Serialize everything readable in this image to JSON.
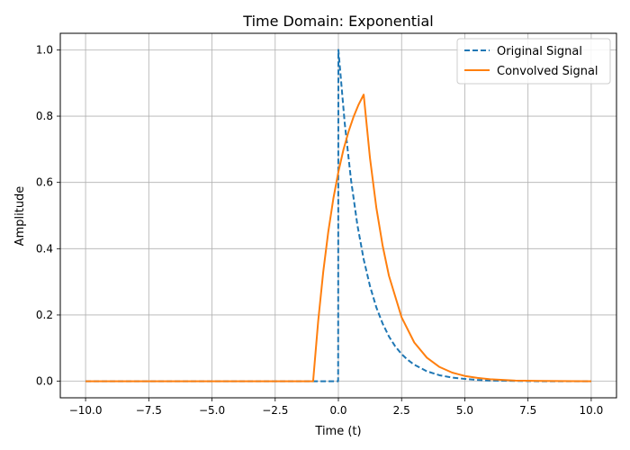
{
  "chart_data": {
    "type": "line",
    "title": "Time Domain: Exponential",
    "xlabel": "Time (t)",
    "ylabel": "Amplitude",
    "xlim": [
      -11.0,
      11.0
    ],
    "ylim": [
      -0.05,
      1.05
    ],
    "xticks": [
      -10.0,
      -7.5,
      -5.0,
      -2.5,
      0.0,
      2.5,
      5.0,
      7.5,
      10.0
    ],
    "xtick_labels": [
      "−10.0",
      "−7.5",
      "−5.0",
      "−2.5",
      "0.0",
      "2.5",
      "5.0",
      "7.5",
      "10.0"
    ],
    "yticks": [
      0.0,
      0.2,
      0.4,
      0.6,
      0.8,
      1.0
    ],
    "ytick_labels": [
      "0.0",
      "0.2",
      "0.4",
      "0.6",
      "0.8",
      "1.0"
    ],
    "grid": true,
    "legend_position": "top-right",
    "series": [
      {
        "name": "Original Signal",
        "color": "#1f77b4",
        "style": "dashed",
        "x": [
          -10,
          -0.01,
          0,
          0.25,
          0.5,
          0.75,
          1.0,
          1.25,
          1.5,
          1.75,
          2.0,
          2.25,
          2.5,
          2.75,
          3.0,
          3.5,
          4.0,
          4.5,
          5.0,
          5.5,
          6.0,
          7.0,
          8.0,
          10.0
        ],
        "y": [
          0.0,
          0.0,
          1.0,
          0.779,
          0.607,
          0.472,
          0.368,
          0.287,
          0.223,
          0.174,
          0.135,
          0.105,
          0.082,
          0.064,
          0.05,
          0.03,
          0.018,
          0.011,
          0.007,
          0.004,
          0.002,
          0.001,
          0.0,
          0.0
        ]
      },
      {
        "name": "Convolved Signal",
        "color": "#ff7f0e",
        "style": "solid",
        "x": [
          -10,
          -1.0,
          -0.8,
          -0.6,
          -0.4,
          -0.2,
          0.0,
          0.2,
          0.4,
          0.6,
          0.8,
          1.0,
          1.25,
          1.5,
          1.75,
          2.0,
          2.5,
          3.0,
          3.5,
          4.0,
          4.5,
          5.0,
          5.5,
          6.0,
          7.0,
          8.0,
          10.0
        ],
        "y": [
          0.0,
          0.0,
          0.181,
          0.33,
          0.451,
          0.551,
          0.632,
          0.699,
          0.753,
          0.798,
          0.835,
          0.865,
          0.673,
          0.524,
          0.409,
          0.318,
          0.193,
          0.117,
          0.071,
          0.043,
          0.026,
          0.016,
          0.01,
          0.006,
          0.002,
          0.001,
          0.0
        ]
      }
    ]
  }
}
